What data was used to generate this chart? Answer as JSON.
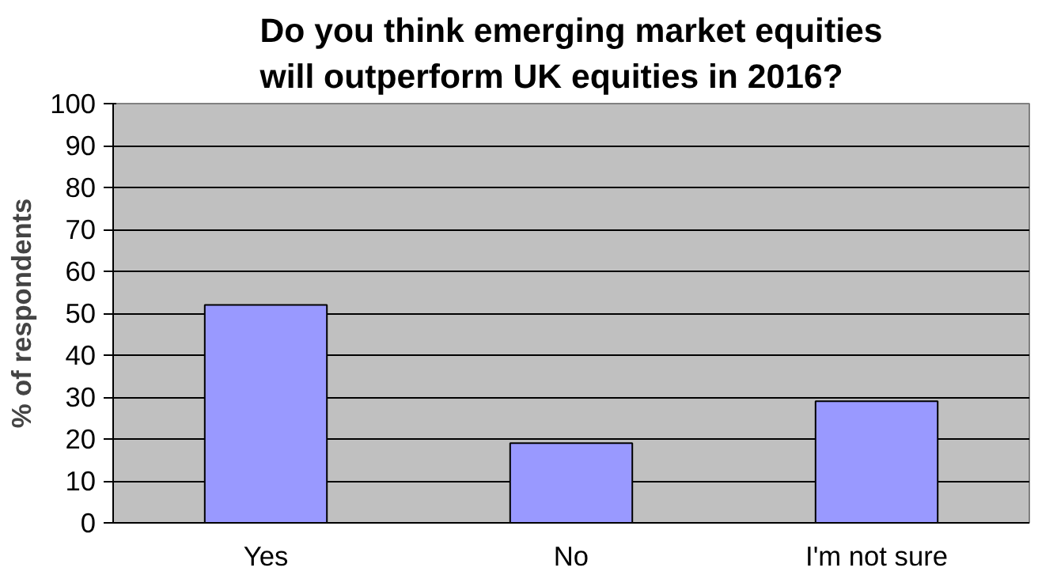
{
  "chart_data": {
    "type": "bar",
    "title": "Do you think emerging market equities\nwill outperform UK equities in 2016?",
    "ylabel": "% of respondents",
    "categories": [
      "Yes",
      "No",
      "I'm not sure"
    ],
    "series": [
      {
        "color": "#9999ff",
        "values": [
          52,
          19,
          29
        ]
      }
    ],
    "ylim": [
      0,
      100
    ],
    "yticks": [
      0,
      10,
      20,
      30,
      40,
      50,
      60,
      70,
      80,
      90,
      100
    ],
    "grid": "y"
  }
}
